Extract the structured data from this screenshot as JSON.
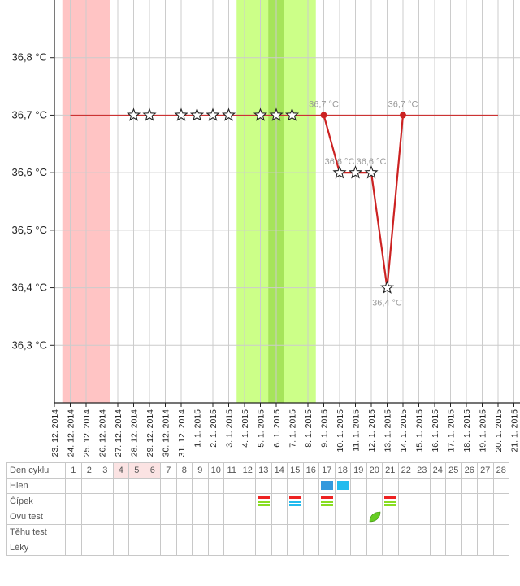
{
  "chart_data": {
    "type": "line",
    "ylim": [
      36.2,
      36.9
    ],
    "yticks": [
      "36,3 °C",
      "36,4 °C",
      "36,5 °C",
      "36,6 °C",
      "36,7 °C",
      "36,8 °C"
    ],
    "yticks_values": [
      36.3,
      36.4,
      36.5,
      36.6,
      36.7,
      36.8
    ],
    "x": [
      "23. 12. 2014",
      "24. 12. 2014",
      "25. 12. 2014",
      "26. 12. 2014",
      "27. 12. 2014",
      "28. 12. 2014",
      "29. 12. 2014",
      "30. 12. 2014",
      "31. 12. 2014",
      "1. 1. 2015",
      "2. 1. 2015",
      "3. 1. 2015",
      "4. 1. 2015",
      "5. 1. 2015",
      "6. 1. 2015",
      "7. 1. 2015",
      "8. 1. 2015",
      "9. 1. 2015",
      "10. 1. 2015",
      "11. 1. 2015",
      "12. 1. 2015",
      "13. 1. 2015",
      "14. 1. 2015",
      "15. 1. 2015",
      "16. 1. 2015",
      "17. 1. 2015",
      "18. 1. 2015",
      "19. 1. 2015",
      "20. 1. 2015",
      "21. 1. 2015"
    ],
    "period_days": [
      1,
      3
    ],
    "fertile_days": [
      12,
      16
    ],
    "peak_fertile_days": [
      14,
      14
    ],
    "baseline_temp": 36.7,
    "star_points": [
      {
        "day": 5,
        "temp": 36.7
      },
      {
        "day": 6,
        "temp": 36.7
      },
      {
        "day": 8,
        "temp": 36.7
      },
      {
        "day": 9,
        "temp": 36.7
      },
      {
        "day": 10,
        "temp": 36.7
      },
      {
        "day": 11,
        "temp": 36.7
      },
      {
        "day": 13,
        "temp": 36.7
      },
      {
        "day": 14,
        "temp": 36.7
      },
      {
        "day": 15,
        "temp": 36.7
      }
    ],
    "series": [
      {
        "color": "#cc2222",
        "points": [
          {
            "day": 17,
            "temp": 36.7,
            "label": "36,7 °C",
            "marker": "dot"
          },
          {
            "day": 18,
            "temp": 36.6,
            "label": "36,6 °C",
            "marker": "star"
          },
          {
            "day": 19,
            "temp": 36.6,
            "label": "",
            "marker": "star"
          },
          {
            "day": 20,
            "temp": 36.6,
            "label": "36,6 °C",
            "marker": "star"
          },
          {
            "day": 21,
            "temp": 36.4,
            "label": "36,4 °C",
            "marker": "star"
          },
          {
            "day": 22,
            "temp": 36.7,
            "label": "36,7 °C",
            "marker": "dot"
          }
        ]
      }
    ],
    "colors": {
      "period": "#ffc4c4",
      "fertile": "#ccff88",
      "peak_fertile": "#a6e45a",
      "line": "#cc2222",
      "baseline": "#cc3333",
      "grid": "#cccccc",
      "label": "#999999"
    }
  },
  "table": {
    "cycle_label": "Den cyklu",
    "days": [
      1,
      2,
      3,
      4,
      5,
      6,
      7,
      8,
      9,
      10,
      11,
      12,
      13,
      14,
      15,
      16,
      17,
      18,
      19,
      20,
      21,
      22,
      23,
      24,
      25,
      26,
      27,
      28
    ],
    "period_highlight_days": [
      4,
      5,
      6
    ],
    "rows": [
      {
        "label": "Hlen",
        "marks": [
          {
            "day": 17,
            "icon": "mucus-blue-icon",
            "color": "#3399dd"
          },
          {
            "day": 18,
            "icon": "mucus-lightblue-icon",
            "color": "#22bbee"
          }
        ]
      },
      {
        "label": "Čípek",
        "marks": [
          {
            "day": 13,
            "icon": "cervix-red-green-icon",
            "colors": [
              "#ee2222",
              "#88dd22"
            ]
          },
          {
            "day": 15,
            "icon": "cervix-red-blue-icon",
            "colors": [
              "#ee2222",
              "#22bbee"
            ]
          },
          {
            "day": 17,
            "icon": "cervix-red-green-icon",
            "colors": [
              "#ee2222",
              "#88dd22"
            ]
          },
          {
            "day": 21,
            "icon": "cervix-red-green-icon",
            "colors": [
              "#ee2222",
              "#88dd22"
            ]
          }
        ]
      },
      {
        "label": "Ovu test",
        "marks": [
          {
            "day": 20,
            "icon": "leaf-icon",
            "color": "#66cc22"
          }
        ]
      },
      {
        "label": "Těhu test",
        "marks": []
      },
      {
        "label": "Léky",
        "marks": []
      }
    ]
  }
}
